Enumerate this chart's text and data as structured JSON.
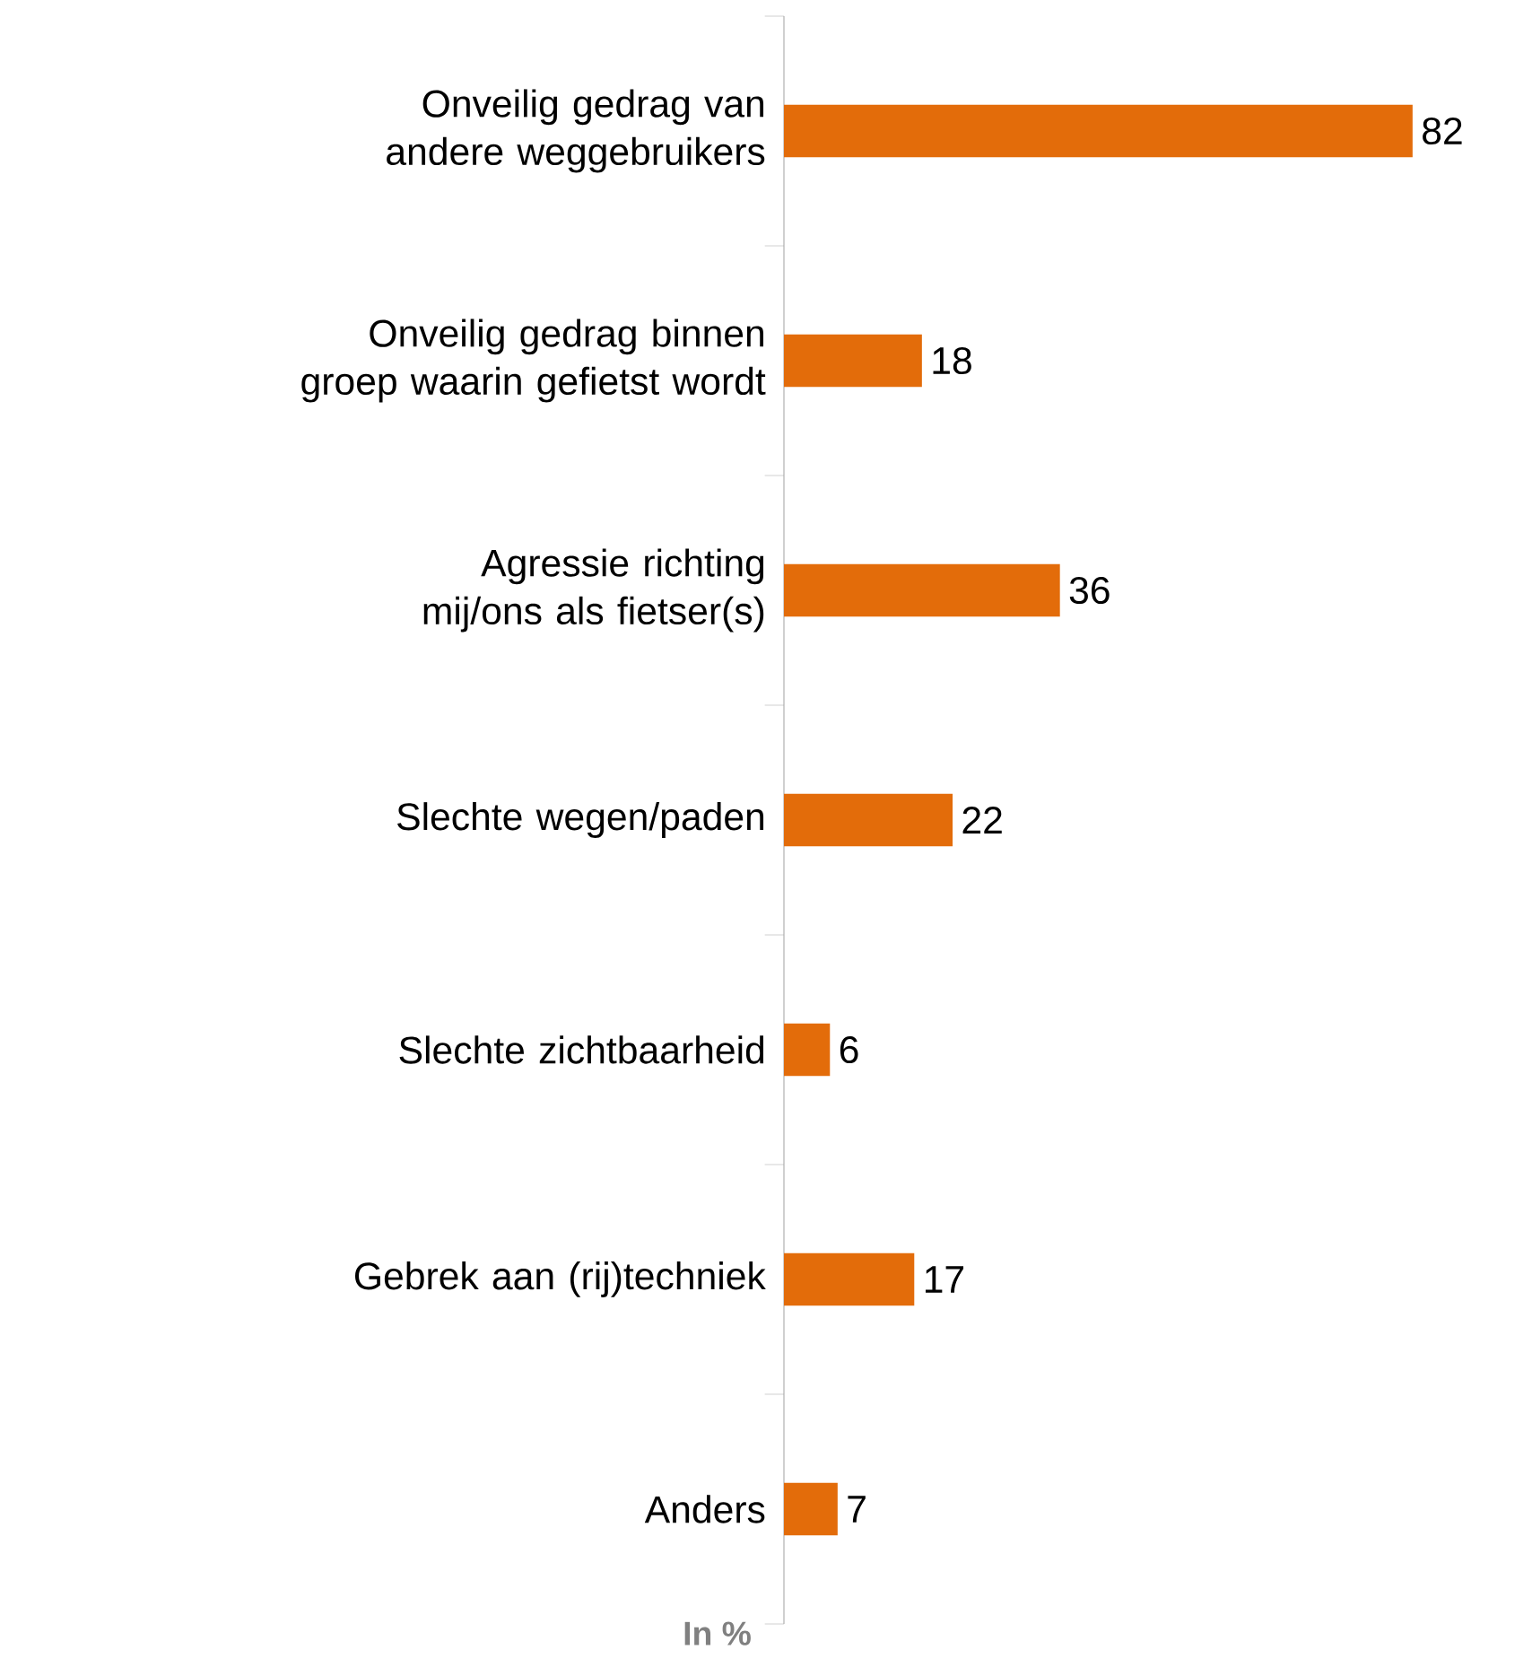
{
  "chart_data": {
    "type": "bar",
    "orientation": "horizontal",
    "categories": [
      "Onveilig gedrag van andere weggebruikers",
      "Onveilig gedrag binnen groep waarin gefietst wordt",
      "Agressie richting mij/ons als fietser(s)",
      "Slechte wegen/paden",
      "Slechte zichtbaarheid",
      "Gebrek aan (rij)techniek",
      "Anders"
    ],
    "values": [
      82,
      18,
      36,
      22,
      6,
      17,
      7
    ],
    "color": "#e36c0a",
    "data_labels": true,
    "annotations": [
      "In %"
    ]
  }
}
